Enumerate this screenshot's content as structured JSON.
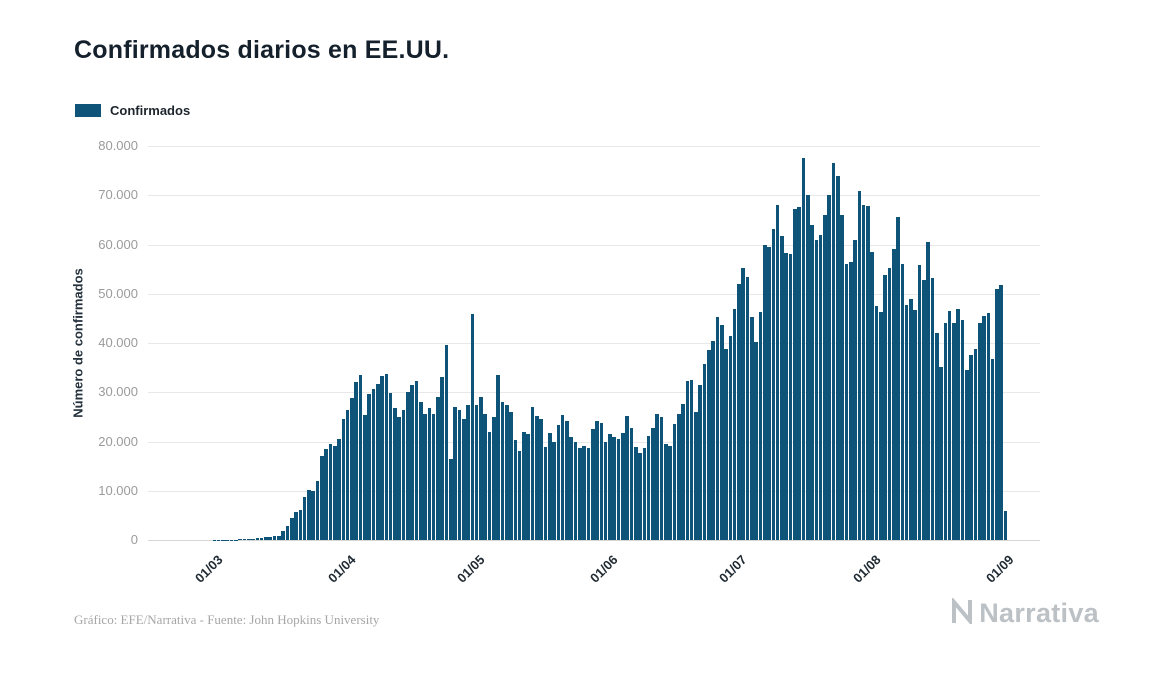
{
  "page": {
    "title": "Confirmados diarios en EE.UU.",
    "source_note": "Gráfico: EFE/Narrativa - Fuente: John Hopkins University",
    "logo_text": "Narrativa"
  },
  "legend": {
    "label": "Confirmados"
  },
  "colors": {
    "bar": "#0d5478",
    "grid": "#e8e8e8",
    "axis_text": "#9b9b9b",
    "title_text": "#14202b",
    "logo_text": "#bcc1c5"
  },
  "chart_data": {
    "type": "bar",
    "title": "Confirmados diarios en EE.UU.",
    "xlabel": "",
    "ylabel": "Número de confirmados",
    "legend_entries": [
      "Confirmados"
    ],
    "ylim": [
      0,
      80000
    ],
    "grid": true,
    "y_ticks": [
      {
        "value": 0,
        "label": "0"
      },
      {
        "value": 10000,
        "label": "10.000"
      },
      {
        "value": 20000,
        "label": "20.000"
      },
      {
        "value": 30000,
        "label": "30.000"
      },
      {
        "value": 40000,
        "label": "40.000"
      },
      {
        "value": 50000,
        "label": "50.000"
      },
      {
        "value": 60000,
        "label": "60.000"
      },
      {
        "value": 70000,
        "label": "70.000"
      },
      {
        "value": 80000,
        "label": "80.000"
      }
    ],
    "x_ticks": [
      {
        "label": "01/03",
        "index": 15
      },
      {
        "label": "01/04",
        "index": 46
      },
      {
        "label": "01/05",
        "index": 76
      },
      {
        "label": "01/06",
        "index": 107
      },
      {
        "label": "01/07",
        "index": 137
      },
      {
        "label": "01/08",
        "index": 168
      },
      {
        "label": "01/09",
        "index": 199
      }
    ],
    "x_unit": "day",
    "values": [
      0,
      0,
      0,
      0,
      0,
      0,
      0,
      5,
      5,
      8,
      10,
      12,
      10,
      8,
      10,
      30,
      25,
      30,
      35,
      60,
      100,
      120,
      120,
      200,
      290,
      310,
      360,
      520,
      590,
      780,
      890,
      1750,
      2800,
      4500,
      5600,
      6000,
      8800,
      10200,
      10000,
      12000,
      17000,
      18500,
      19500,
      19000,
      20500,
      24500,
      26500,
      28800,
      32100,
      33600,
      25300,
      29600,
      30600,
      31700,
      33300,
      33750,
      29900,
      26900,
      25000,
      26400,
      30100,
      31400,
      32200,
      28100,
      25500,
      26800,
      25500,
      29000,
      33000,
      39500,
      16500,
      27000,
      26500,
      24500,
      27500,
      45900,
      27500,
      29000,
      25500,
      22000,
      25000,
      33500,
      28000,
      27500,
      26000,
      20300,
      18100,
      22000,
      21500,
      27100,
      25200,
      24500,
      18800,
      21800,
      19900,
      23300,
      25400,
      24200,
      21000,
      20000,
      18700,
      19000,
      18700,
      22600,
      24200,
      23800,
      20000,
      21500,
      21000,
      20500,
      21800,
      25200,
      22800,
      18900,
      17600,
      18700,
      21100,
      22800,
      25600,
      25000,
      19500,
      19000,
      23600,
      25500,
      27700,
      32200,
      32400,
      26000,
      31400,
      35700,
      38600,
      40500,
      45300,
      43600,
      38700,
      41400,
      47000,
      52000,
      55200,
      53500,
      45300,
      40300,
      46300,
      60000,
      59400,
      63200,
      68000,
      61700,
      58300,
      58100,
      67300,
      67600,
      77600,
      70000,
      64000,
      61000,
      62000,
      66000,
      70000,
      76500,
      74000,
      66000,
      56000,
      56500,
      61000,
      70900,
      68000,
      67800,
      58500,
      47600,
      46300,
      53800,
      55200,
      59000,
      65600,
      56000,
      47800,
      49000,
      46800,
      55900,
      52800,
      60500,
      53200,
      42000,
      35100,
      44100,
      46600,
      44000,
      46900,
      44700,
      34600,
      37500,
      38700,
      44000,
      45400,
      46000,
      36700,
      50900,
      51700,
      5800
    ]
  }
}
